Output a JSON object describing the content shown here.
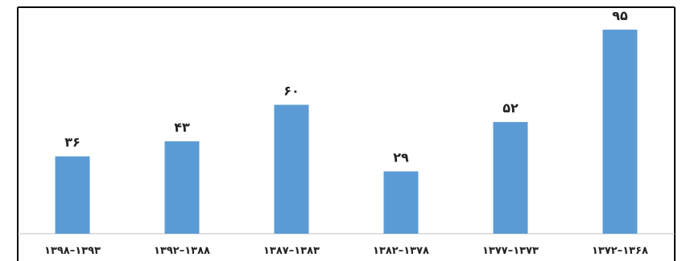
{
  "chart_data": {
    "type": "bar",
    "title": "",
    "xlabel": "",
    "ylabel": "",
    "categories": [
      "۱۳۹۸–۱۳۹۳",
      "۱۳۹۲–۱۳۸۸",
      "۱۳۸۷–۱۳۸۳",
      "۱۳۸۲–۱۳۷۸",
      "۱۳۷۷–۱۳۷۳",
      "۱۳۷۲–۱۳۶۸"
    ],
    "values": [
      36,
      43,
      60,
      29,
      52,
      95
    ],
    "value_labels": [
      "۳۶",
      "۴۳",
      "۶۰",
      "۲۹",
      "۵۲",
      "۹۵"
    ],
    "ylim": [
      0,
      100
    ],
    "grid": false,
    "legend": "none",
    "colors": {
      "bar": "#5b9bd5",
      "frame": "#000000",
      "axis": "#bfbfbf"
    }
  }
}
